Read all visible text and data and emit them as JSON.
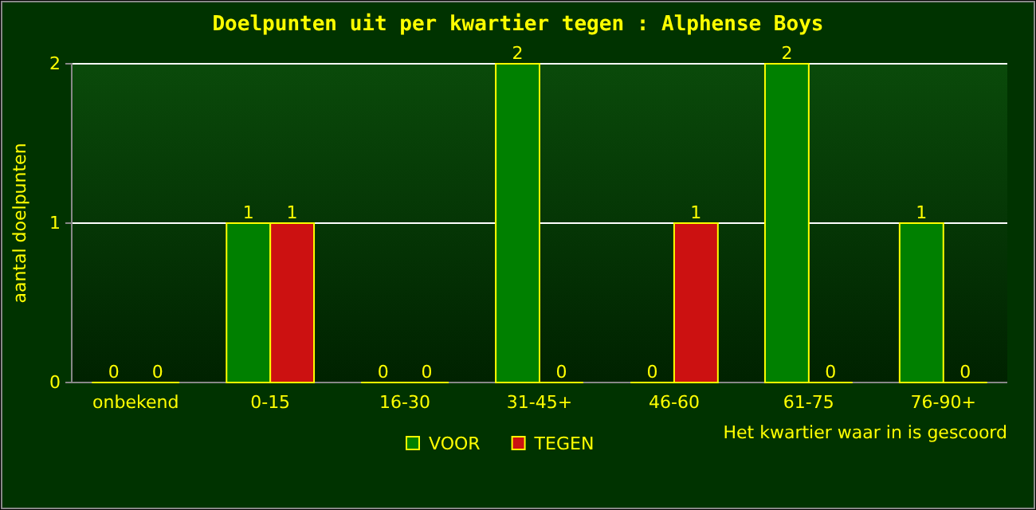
{
  "chart_data": {
    "type": "bar",
    "title": "Doelpunten uit per kwartier tegen : Alphense Boys",
    "categories": [
      "onbekend",
      "0-15",
      "16-30",
      "31-45+",
      "46-60",
      "61-75",
      "76-90+"
    ],
    "series": [
      {
        "name": "VOOR",
        "color": "#008000",
        "values": [
          0,
          1,
          0,
          2,
          0,
          2,
          1
        ]
      },
      {
        "name": "TEGEN",
        "color": "#cc1111",
        "values": [
          0,
          1,
          0,
          0,
          1,
          0,
          0
        ]
      }
    ],
    "xlabel": "Het kwartier waar in is gescoord",
    "ylabel": "aantal doelpunten",
    "ylim": [
      0,
      2
    ],
    "yticks": [
      0,
      1,
      2
    ],
    "grid": "y",
    "legend": "bottom",
    "data_labels": true
  }
}
